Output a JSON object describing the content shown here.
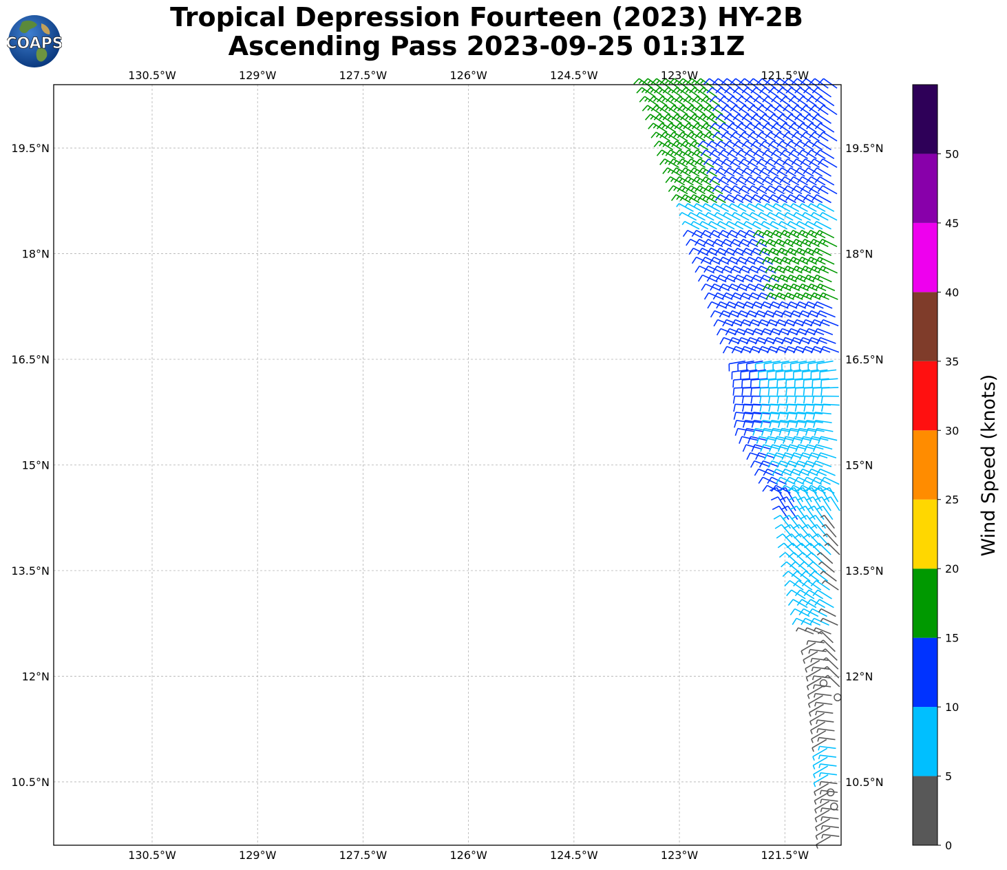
{
  "title_line1": "Tropical Depression Fourteen (2023) HY-2B",
  "title_line2": "Ascending Pass 2023-09-25 01:31Z",
  "logo_text": "COAPS",
  "map": {
    "lon_range": [
      -131.9,
      -120.7
    ],
    "lat_range": [
      9.6,
      20.4
    ],
    "lon_ticks": [
      {
        "value": -130.5,
        "label": "130.5°W"
      },
      {
        "value": -129.0,
        "label": "129°W"
      },
      {
        "value": -127.5,
        "label": "127.5°W"
      },
      {
        "value": -126.0,
        "label": "126°W"
      },
      {
        "value": -124.5,
        "label": "124.5°W"
      },
      {
        "value": -123.0,
        "label": "123°W"
      },
      {
        "value": -121.5,
        "label": "121.5°W"
      }
    ],
    "lat_ticks": [
      {
        "value": 19.5,
        "label": "19.5°N"
      },
      {
        "value": 18.0,
        "label": "18°N"
      },
      {
        "value": 16.5,
        "label": "16.5°N"
      },
      {
        "value": 15.0,
        "label": "15°N"
      },
      {
        "value": 13.5,
        "label": "13.5°N"
      },
      {
        "value": 12.0,
        "label": "12°N"
      },
      {
        "value": 10.5,
        "label": "10.5°N"
      }
    ],
    "grid": true,
    "grid_color": "#b0b0b0"
  },
  "colorbar": {
    "label": "Wind Speed (knots)",
    "bins": [
      {
        "min": 0,
        "max": 5,
        "color": "#585858"
      },
      {
        "min": 5,
        "max": 10,
        "color": "#00bfff"
      },
      {
        "min": 10,
        "max": 15,
        "color": "#0033ff"
      },
      {
        "min": 15,
        "max": 20,
        "color": "#009900"
      },
      {
        "min": 20,
        "max": 25,
        "color": "#ffd700"
      },
      {
        "min": 25,
        "max": 30,
        "color": "#ff8c00"
      },
      {
        "min": 30,
        "max": 35,
        "color": "#ff1010"
      },
      {
        "min": 35,
        "max": 40,
        "color": "#7f3c2a"
      },
      {
        "min": 40,
        "max": 45,
        "color": "#ee00ee"
      },
      {
        "min": 45,
        "max": 50,
        "color": "#8800aa"
      },
      {
        "min": 50,
        "max": 55,
        "color": "#2e0058"
      }
    ],
    "tick_labels": [
      "0",
      "5",
      "10",
      "15",
      "20",
      "25",
      "30",
      "35",
      "40",
      "45",
      "50"
    ]
  },
  "swath": {
    "outer_edge": [
      [
        20.4,
        -123.4
      ],
      [
        18.0,
        -122.6
      ],
      [
        16.3,
        -122.0
      ],
      [
        15.5,
        -121.95
      ],
      [
        14.5,
        -121.5
      ],
      [
        13.5,
        -121.3
      ],
      [
        12.2,
        -121.0
      ],
      [
        11.0,
        -120.9
      ],
      [
        9.7,
        -120.85
      ]
    ],
    "inner_edge": [
      [
        20.4,
        -120.7
      ],
      [
        9.7,
        -120.7
      ]
    ],
    "calm_circles": [
      [
        11.9,
        -120.95
      ],
      [
        11.7,
        -120.75
      ],
      [
        10.35,
        -120.85
      ],
      [
        10.15,
        -120.8
      ]
    ],
    "speed_zones": [
      {
        "lat_min": 19.5,
        "lat_max": 20.4,
        "outer_frac": 0.35,
        "speed": 16
      },
      {
        "lat_min": 19.5,
        "lat_max": 20.4,
        "outer_frac": 1.0,
        "speed": 12
      },
      {
        "lat_min": 18.6,
        "lat_max": 19.5,
        "outer_frac": 0.25,
        "speed": 16
      },
      {
        "lat_min": 18.6,
        "lat_max": 19.5,
        "outer_frac": 1.0,
        "speed": 12
      },
      {
        "lat_min": 17.3,
        "lat_max": 18.25,
        "outer_frac": 0.5,
        "speed": 12
      },
      {
        "lat_min": 17.3,
        "lat_max": 18.25,
        "outer_frac": 1.0,
        "speed": 16
      },
      {
        "lat_min": 16.5,
        "lat_max": 17.3,
        "outer_frac": 1.0,
        "speed": 12
      },
      {
        "lat_min": 14.2,
        "lat_max": 16.5,
        "outer_frac": 0.2,
        "speed": 12
      },
      {
        "lat_min": 14.2,
        "lat_max": 16.5,
        "outer_frac": 1.0,
        "speed": 8
      },
      {
        "lat_min": 12.6,
        "lat_max": 14.2,
        "outer_frac": 0.8,
        "speed": 8
      },
      {
        "lat_min": 12.6,
        "lat_max": 14.2,
        "outer_frac": 1.0,
        "speed": 4
      },
      {
        "lat_min": 11.0,
        "lat_max": 12.6,
        "outer_frac": 1.0,
        "speed": 4
      },
      {
        "lat_min": 10.5,
        "lat_max": 11.0,
        "outer_frac": 1.0,
        "speed": 7
      },
      {
        "lat_min": 9.6,
        "lat_max": 10.5,
        "outer_frac": 1.0,
        "speed": 3
      }
    ]
  }
}
